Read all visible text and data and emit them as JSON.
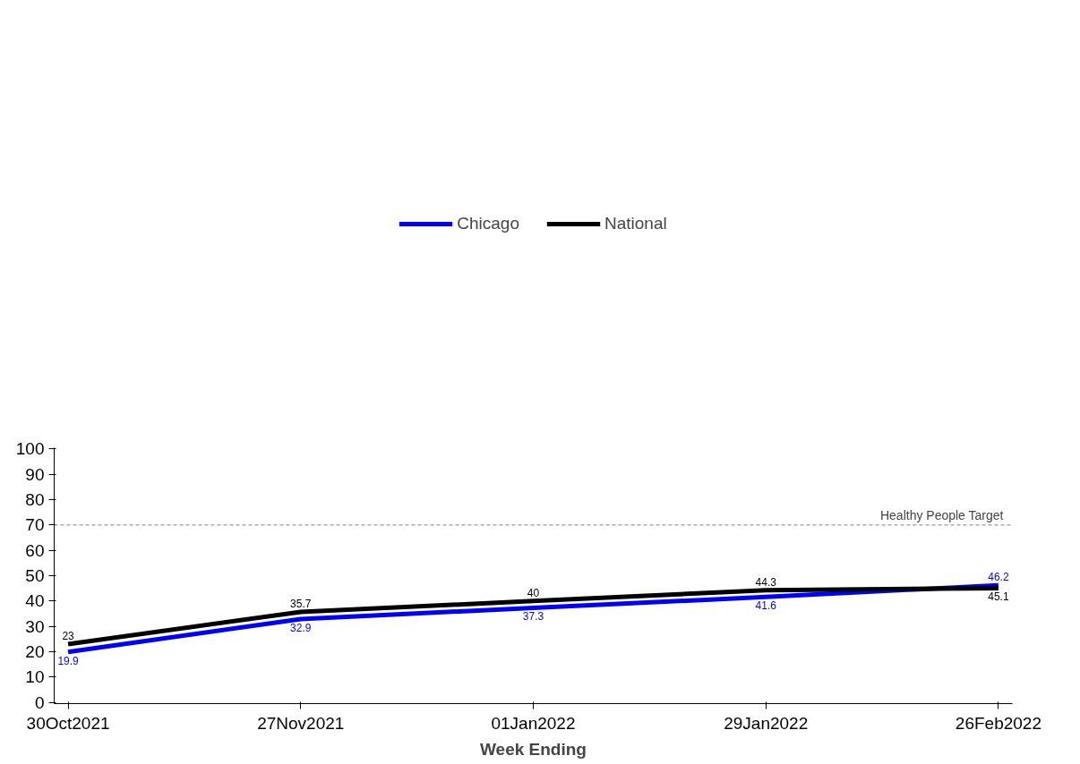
{
  "chart_data": {
    "type": "line",
    "xlabel": "Week Ending",
    "categories": [
      "30Oct2021",
      "27Nov2021",
      "01Jan2022",
      "29Jan2022",
      "26Feb2022"
    ],
    "series": [
      {
        "name": "Chicago",
        "color": "#0000ff",
        "values": [
          19.9,
          32.9,
          37.3,
          41.6,
          46.2
        ]
      },
      {
        "name": "National",
        "color": "#000000",
        "values": [
          23,
          35.7,
          40,
          44.3,
          45.1
        ]
      }
    ],
    "ylim": [
      -0.5,
      100.5
    ],
    "yticks": [
      0,
      10,
      20,
      30,
      40,
      50,
      60,
      70,
      80,
      90,
      100
    ],
    "ref_lines": [
      {
        "axis": "y",
        "value": 70,
        "label": "Healthy People Target",
        "color": "#808080",
        "line_style": "dashed"
      }
    ],
    "data_labels": true,
    "legend": "top",
    "grid": false,
    "marker": "none",
    "line_style": "solid"
  }
}
